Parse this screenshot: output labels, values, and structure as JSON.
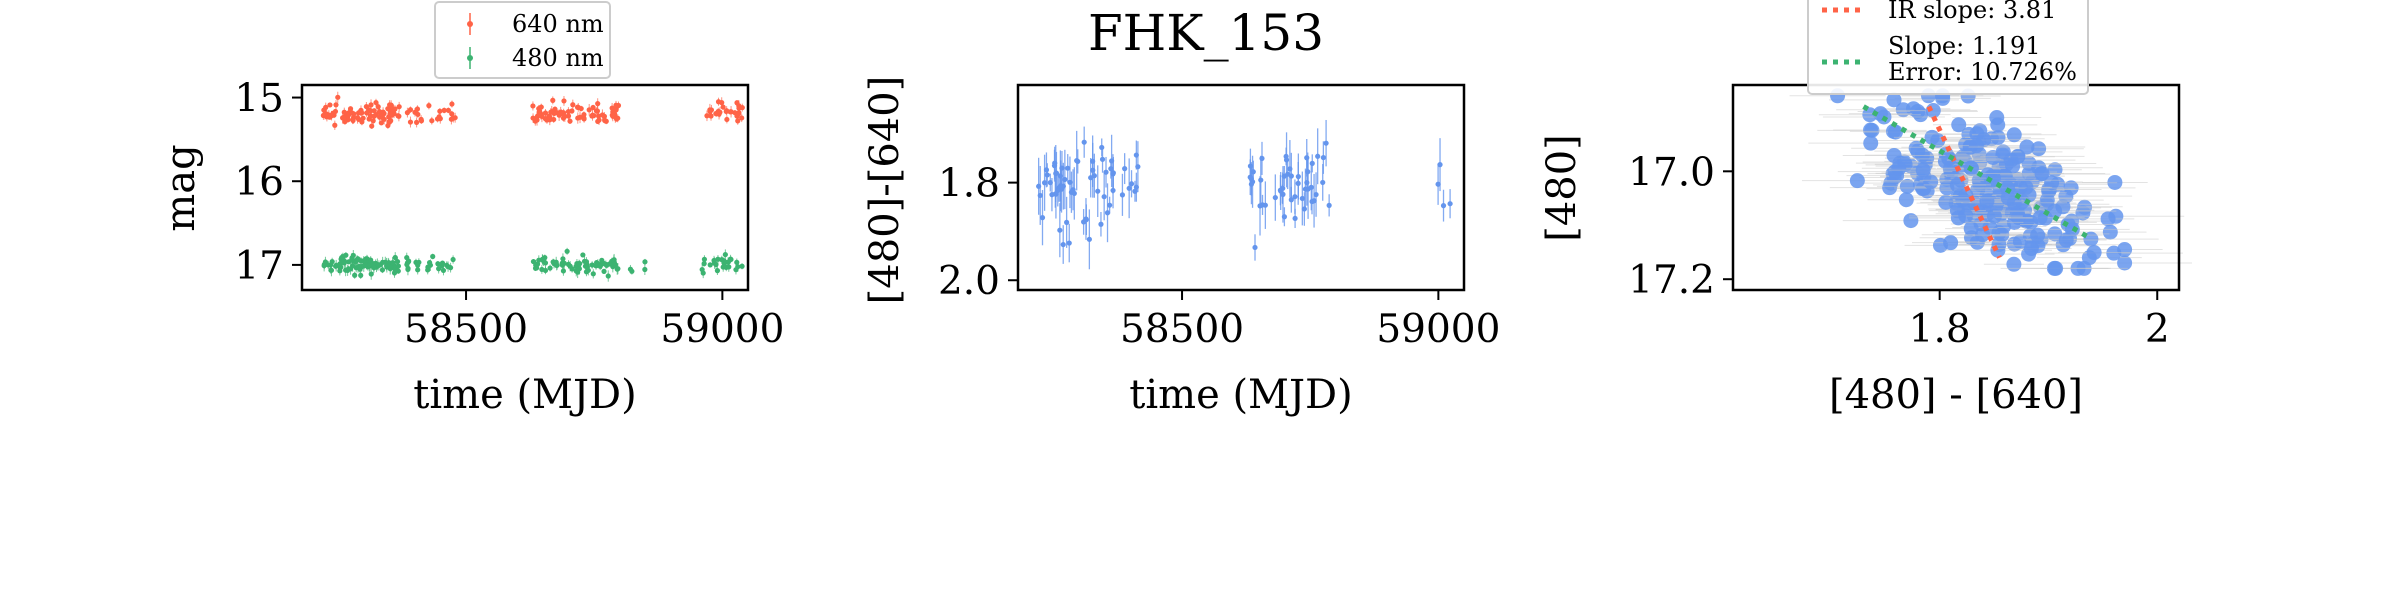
{
  "chart_data": [
    {
      "type": "scatter",
      "xlabel": "time (MJD)",
      "ylabel": "mag",
      "xlim": [
        58180,
        59050
      ],
      "ylim": [
        17.3,
        14.85
      ],
      "y_inverted": true,
      "xticks": [
        58500,
        59000
      ],
      "yticks": [
        15,
        16,
        17
      ],
      "legend": {
        "placement": "top-center-outside",
        "entries": [
          "640 nm",
          "480 nm"
        ]
      },
      "series": [
        {
          "name": "640 nm",
          "color": "#ff6347",
          "center": 15.2,
          "spread": 0.1,
          "segments": [
            [
              58220,
              58370,
              90
            ],
            [
              58380,
              58480,
              22
            ],
            [
              58630,
              58800,
              75
            ],
            [
              58960,
              59040,
              28
            ]
          ]
        },
        {
          "name": "480 nm",
          "color": "#3cb371",
          "center": 17.0,
          "spread": 0.08,
          "segments": [
            [
              58220,
              58370,
              95
            ],
            [
              58380,
              58480,
              25
            ],
            [
              58630,
              58800,
              70
            ],
            [
              58820,
              58850,
              4
            ],
            [
              58960,
              59040,
              24
            ]
          ]
        }
      ]
    },
    {
      "type": "scatter",
      "title": "FHK_153",
      "xlabel": "time (MJD)",
      "ylabel": "[480]-[640]",
      "xlim": [
        58180,
        59050
      ],
      "ylim": [
        2.02,
        1.6
      ],
      "y_inverted": true,
      "xticks": [
        58500,
        59000
      ],
      "yticks": [
        1.8,
        2.0
      ],
      "series": [
        {
          "name": "",
          "color": "#6495ed",
          "center": 1.81,
          "spread": 0.045,
          "segments": [
            [
              58220,
              58370,
              55
            ],
            [
              58380,
              58420,
              8
            ],
            [
              58630,
              58670,
              12
            ],
            [
              58680,
              58790,
              35
            ],
            [
              58990,
              59030,
              4
            ]
          ]
        }
      ]
    },
    {
      "type": "scatter",
      "xlabel": "[480] - [640]",
      "ylabel": "[480]",
      "xlim": [
        1.61,
        2.02
      ],
      "ylim": [
        17.22,
        16.84
      ],
      "y_inverted": true,
      "xticks": [
        1.8,
        2.0
      ],
      "yticks": [
        17.0,
        17.2
      ],
      "legend": {
        "placement": "top-center",
        "entries": [
          "IR slope: 3.81",
          "Slope: 1.191\nError: 10.726%"
        ]
      },
      "points_color": "#6495ed",
      "fit_lines": [
        {
          "name": "IR slope: 3.81",
          "color": "#ff6347",
          "x": [
            1.79,
            1.855
          ],
          "y": [
            16.88,
            17.16
          ]
        },
        {
          "name": "Slope: 1.191\nError: 10.726%",
          "color": "#3cb371",
          "x": [
            1.73,
            1.935
          ],
          "y": [
            16.88,
            17.12
          ]
        }
      ]
    }
  ]
}
